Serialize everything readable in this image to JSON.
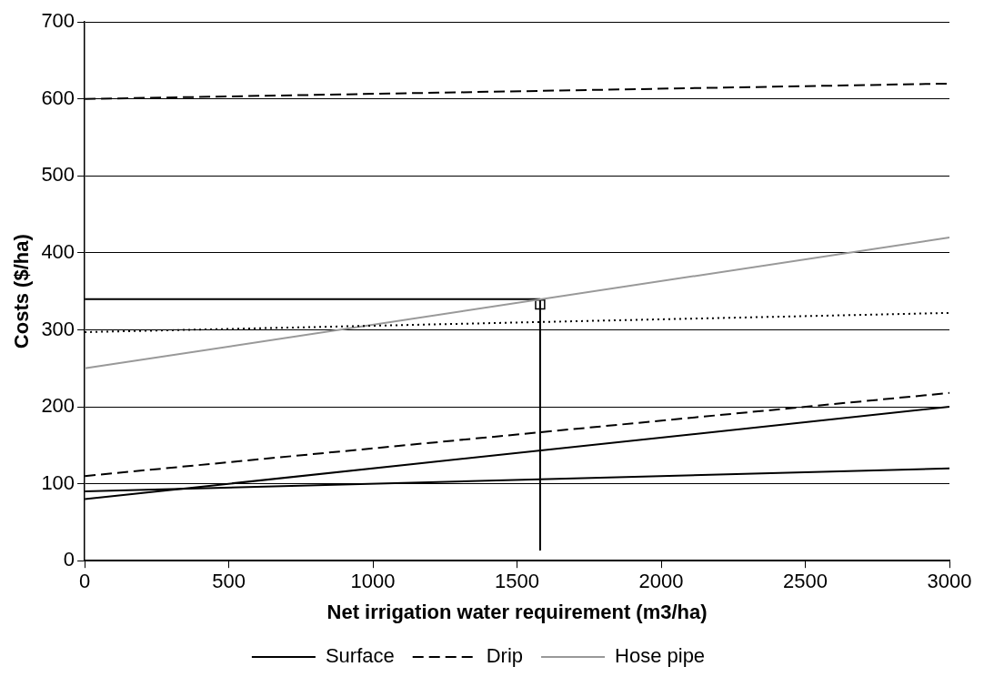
{
  "chart_data": {
    "type": "line",
    "xlabel": "Net irrigation water requirement (m3/ha)",
    "ylabel": "Costs ($/ha)",
    "xlim": [
      0,
      3000
    ],
    "xticks": [
      0,
      500,
      1000,
      1500,
      2000,
      2500,
      3000
    ],
    "ylim": [
      0,
      700
    ],
    "yticks": [
      0,
      100,
      200,
      300,
      400,
      500,
      600,
      700
    ],
    "grid": "y",
    "legend": "bottom",
    "marker": "none",
    "series": [
      {
        "name": "Surface",
        "color": "#000000",
        "x": [
          0,
          3000
        ],
        "values": [
          80,
          200
        ],
        "line_style": "solid"
      },
      {
        "color": "#000000",
        "x": [
          0,
          3000
        ],
        "values": [
          90,
          120
        ],
        "line_style": "solid"
      },
      {
        "color": "#000000",
        "x": [
          0,
          3000
        ],
        "values": [
          110,
          218
        ],
        "line_style": "dashed"
      },
      {
        "color": "#000000",
        "x": [
          0,
          3000
        ],
        "values": [
          297,
          322
        ],
        "line_style": "dotted"
      },
      {
        "name": "Drip",
        "color": "#000000",
        "x": [
          0,
          3000
        ],
        "values": [
          600,
          620
        ],
        "line_style": "dashed"
      },
      {
        "name": "Hose pipe",
        "color": "#999999",
        "x": [
          0,
          3000
        ],
        "values": [
          250,
          420
        ],
        "line_style": "solid"
      },
      {
        "color": "#000000",
        "x": [
          0,
          1580,
          1580
        ],
        "values": [
          340,
          340,
          14
        ],
        "line_style": "solid"
      },
      {
        "type": "scatter",
        "color": "#000000",
        "x": [
          1580
        ],
        "values": [
          333
        ],
        "marker": "square"
      }
    ]
  }
}
